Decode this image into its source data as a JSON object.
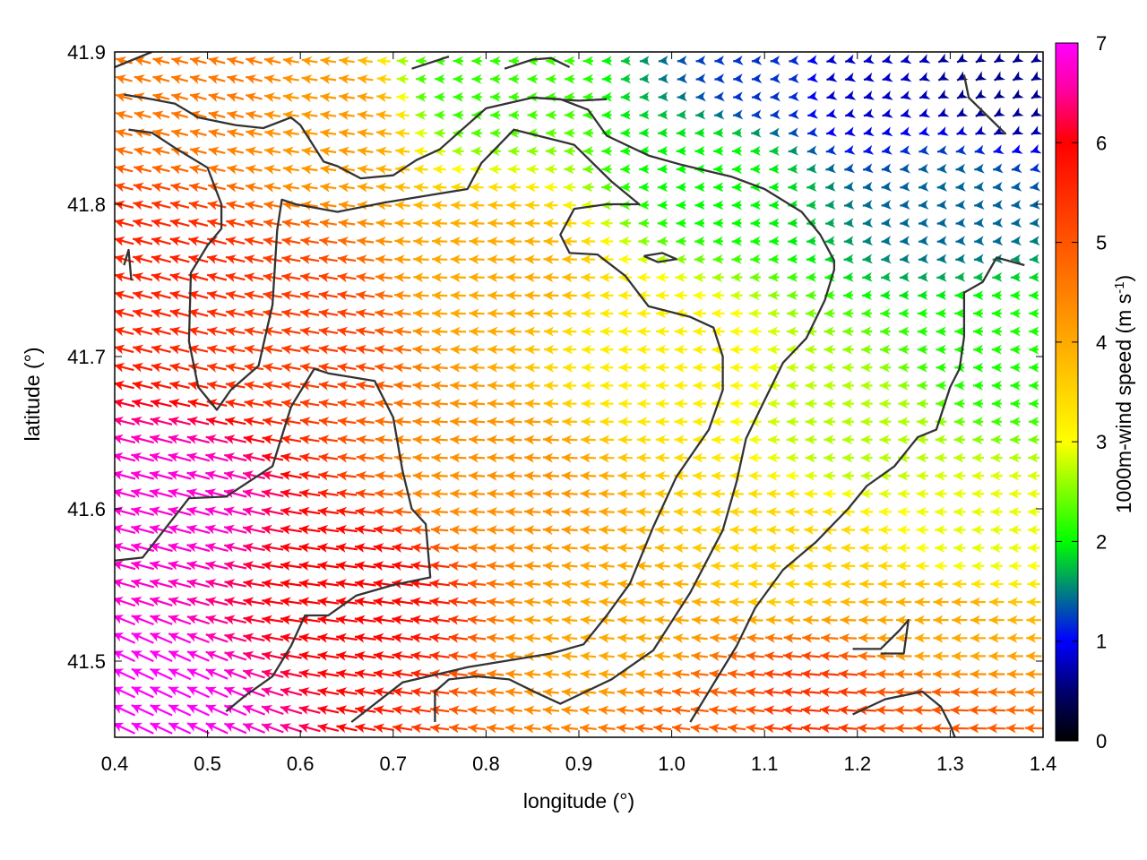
{
  "chart_data": {
    "type": "quiver",
    "title": "",
    "xlabel": "longitude (°)",
    "ylabel": "latitude (°)",
    "xlim": [
      0.4,
      1.4
    ],
    "ylim": [
      41.45,
      41.9
    ],
    "x_ticks": [
      "0.4",
      "0.5",
      "0.6",
      "0.7",
      "0.8",
      "0.9",
      "1.0",
      "1.1",
      "1.2",
      "1.3",
      "1.4"
    ],
    "x_tick_values": [
      0.4,
      0.5,
      0.6,
      0.7,
      0.8,
      0.9,
      1.0,
      1.1,
      1.2,
      1.3,
      1.4
    ],
    "y_ticks": [
      "41.5",
      "41.6",
      "41.7",
      "41.8",
      "41.9"
    ],
    "y_tick_values": [
      41.5,
      41.6,
      41.7,
      41.8,
      41.9
    ],
    "colorbar": {
      "label": "1000m-wind speed (m s-1)",
      "label_main": "1000m-wind speed (m s",
      "label_sup": "-1",
      "label_end": ")",
      "range": [
        0,
        7
      ],
      "ticks": [
        "0",
        "1",
        "2",
        "3",
        "4",
        "5",
        "6",
        "7"
      ],
      "tick_values": [
        0,
        1,
        2,
        3,
        4,
        5,
        6,
        7
      ],
      "colormap": [
        {
          "value": 0.0,
          "color": "#000000"
        },
        {
          "value": 0.5,
          "color": "#00006e"
        },
        {
          "value": 1.0,
          "color": "#0000ff"
        },
        {
          "value": 1.5,
          "color": "#008080"
        },
        {
          "value": 2.0,
          "color": "#00ff00"
        },
        {
          "value": 2.5,
          "color": "#80ff00"
        },
        {
          "value": 3.0,
          "color": "#ffff00"
        },
        {
          "value": 4.0,
          "color": "#ffaa00"
        },
        {
          "value": 5.0,
          "color": "#ff5500"
        },
        {
          "value": 6.0,
          "color": "#ff0000"
        },
        {
          "value": 6.5,
          "color": "#ff0099"
        },
        {
          "value": 7.0,
          "color": "#ff00ff"
        }
      ]
    },
    "wind_field_anchors": [
      {
        "lon": 0.42,
        "lat": 41.47,
        "speed": 7.0,
        "dir_deg": 155
      },
      {
        "lon": 0.45,
        "lat": 41.6,
        "speed": 6.8,
        "dir_deg": 165
      },
      {
        "lon": 0.45,
        "lat": 41.75,
        "speed": 5.6,
        "dir_deg": 165
      },
      {
        "lon": 0.5,
        "lat": 41.88,
        "speed": 4.6,
        "dir_deg": 165
      },
      {
        "lon": 0.65,
        "lat": 41.55,
        "speed": 6.0,
        "dir_deg": 172
      },
      {
        "lon": 0.6,
        "lat": 41.72,
        "speed": 5.3,
        "dir_deg": 170
      },
      {
        "lon": 0.63,
        "lat": 41.86,
        "speed": 4.2,
        "dir_deg": 172
      },
      {
        "lon": 0.8,
        "lat": 41.62,
        "speed": 4.3,
        "dir_deg": 177
      },
      {
        "lon": 0.8,
        "lat": 41.75,
        "speed": 4.0,
        "dir_deg": 178
      },
      {
        "lon": 0.78,
        "lat": 41.88,
        "speed": 2.2,
        "dir_deg": 180
      },
      {
        "lon": 0.95,
        "lat": 41.52,
        "speed": 4.0,
        "dir_deg": 175
      },
      {
        "lon": 0.97,
        "lat": 41.7,
        "speed": 3.2,
        "dir_deg": 180
      },
      {
        "lon": 1.05,
        "lat": 41.82,
        "speed": 2.0,
        "dir_deg": 182
      },
      {
        "lon": 1.1,
        "lat": 41.88,
        "speed": 1.2,
        "dir_deg": 185
      },
      {
        "lon": 1.2,
        "lat": 41.88,
        "speed": 0.8,
        "dir_deg": 195
      },
      {
        "lon": 1.35,
        "lat": 41.88,
        "speed": 0.6,
        "dir_deg": 210
      },
      {
        "lon": 1.3,
        "lat": 41.8,
        "speed": 1.4,
        "dir_deg": 185
      },
      {
        "lon": 1.35,
        "lat": 41.7,
        "speed": 2.1,
        "dir_deg": 180
      },
      {
        "lon": 1.2,
        "lat": 41.65,
        "speed": 2.7,
        "dir_deg": 180
      },
      {
        "lon": 1.33,
        "lat": 41.58,
        "speed": 2.9,
        "dir_deg": 180
      },
      {
        "lon": 1.12,
        "lat": 41.57,
        "speed": 3.5,
        "dir_deg": 178
      },
      {
        "lon": 1.3,
        "lat": 41.52,
        "speed": 4.0,
        "dir_deg": 180
      },
      {
        "lon": 1.15,
        "lat": 41.47,
        "speed": 5.4,
        "dir_deg": 175
      },
      {
        "lon": 1.28,
        "lat": 41.46,
        "speed": 5.0,
        "dir_deg": 178
      },
      {
        "lon": 1.05,
        "lat": 41.46,
        "speed": 4.9,
        "dir_deg": 173
      }
    ],
    "wind_grid": {
      "cols": 50,
      "rows": 38
    },
    "contour_lines": [
      [
        [
          0.41,
          41.872
        ],
        [
          0.44,
          41.869
        ],
        [
          0.465,
          41.866
        ],
        [
          0.49,
          41.857
        ],
        [
          0.53,
          41.852
        ],
        [
          0.56,
          41.85
        ],
        [
          0.59,
          41.857
        ],
        [
          0.6,
          41.852
        ],
        [
          0.625,
          41.828
        ],
        [
          0.64,
          41.825
        ],
        [
          0.665,
          41.817
        ],
        [
          0.7,
          41.819
        ],
        [
          0.725,
          41.829
        ],
        [
          0.75,
          41.836
        ],
        [
          0.8,
          41.863
        ],
        [
          0.85,
          41.87
        ],
        [
          0.9,
          41.868
        ],
        [
          0.93,
          41.869
        ]
      ],
      [
        [
          0.415,
          41.849
        ],
        [
          0.44,
          41.847
        ],
        [
          0.465,
          41.837
        ],
        [
          0.5,
          41.824
        ],
        [
          0.515,
          41.8
        ],
        [
          0.515,
          41.784
        ],
        [
          0.5,
          41.773
        ],
        [
          0.482,
          41.755
        ],
        [
          0.48,
          41.71
        ],
        [
          0.49,
          41.68
        ],
        [
          0.51,
          41.665
        ],
        [
          0.525,
          41.678
        ],
        [
          0.555,
          41.694
        ],
        [
          0.57,
          41.734
        ],
        [
          0.575,
          41.783
        ],
        [
          0.58,
          41.803
        ],
        [
          0.595,
          41.8
        ],
        [
          0.64,
          41.795
        ],
        [
          0.69,
          41.801
        ],
        [
          0.74,
          41.806
        ],
        [
          0.78,
          41.81
        ],
        [
          0.795,
          41.827
        ],
        [
          0.83,
          41.849
        ],
        [
          0.895,
          41.839
        ],
        [
          0.935,
          41.815
        ],
        [
          0.965,
          41.8
        ],
        [
          0.93,
          41.8
        ],
        [
          0.895,
          41.797
        ],
        [
          0.88,
          41.78
        ],
        [
          0.89,
          41.768
        ],
        [
          0.92,
          41.767
        ],
        [
          0.95,
          41.753
        ],
        [
          0.975,
          41.733
        ],
        [
          1.02,
          41.726
        ],
        [
          1.045,
          41.719
        ],
        [
          1.055,
          41.7
        ],
        [
          1.055,
          41.678
        ],
        [
          1.04,
          41.652
        ],
        [
          1.005,
          41.621
        ],
        [
          0.98,
          41.588
        ],
        [
          0.955,
          41.551
        ],
        [
          0.93,
          41.53
        ],
        [
          0.905,
          41.511
        ],
        [
          0.87,
          41.505
        ],
        [
          0.78,
          41.496
        ],
        [
          0.71,
          41.486
        ],
        [
          0.655,
          41.46
        ]
      ],
      [
        [
          0.52,
          41.467
        ],
        [
          0.54,
          41.477
        ],
        [
          0.57,
          41.49
        ],
        [
          0.58,
          41.5
        ],
        [
          0.59,
          41.51
        ],
        [
          0.605,
          41.53
        ],
        [
          0.63,
          41.53
        ],
        [
          0.66,
          41.543
        ],
        [
          0.7,
          41.55
        ],
        [
          0.74,
          41.555
        ],
        [
          0.735,
          41.59
        ],
        [
          0.72,
          41.6
        ],
        [
          0.71,
          41.625
        ],
        [
          0.7,
          41.66
        ],
        [
          0.68,
          41.684
        ],
        [
          0.63,
          41.689
        ],
        [
          0.615,
          41.692
        ],
        [
          0.59,
          41.667
        ],
        [
          0.57,
          41.628
        ],
        [
          0.52,
          41.608
        ],
        [
          0.48,
          41.607
        ],
        [
          0.43,
          41.568
        ],
        [
          0.4,
          41.566
        ]
      ],
      [
        [
          0.745,
          41.46
        ],
        [
          0.745,
          41.48
        ],
        [
          0.76,
          41.488
        ],
        [
          0.79,
          41.49
        ],
        [
          0.825,
          41.488
        ],
        [
          0.855,
          41.479
        ],
        [
          0.88,
          41.472
        ],
        [
          0.935,
          41.488
        ],
        [
          0.98,
          41.507
        ],
        [
          1.02,
          41.545
        ],
        [
          1.055,
          41.586
        ],
        [
          1.07,
          41.618
        ],
        [
          1.08,
          41.646
        ],
        [
          1.095,
          41.665
        ],
        [
          1.12,
          41.696
        ],
        [
          1.145,
          41.712
        ],
        [
          1.165,
          41.737
        ],
        [
          1.175,
          41.757
        ],
        [
          1.175,
          41.763
        ],
        [
          1.16,
          41.78
        ],
        [
          1.14,
          41.795
        ],
        [
          1.1,
          41.81
        ],
        [
          1.065,
          41.818
        ],
        [
          1.01,
          41.826
        ],
        [
          0.975,
          41.832
        ],
        [
          0.93,
          41.845
        ],
        [
          0.91,
          41.862
        ],
        [
          0.88,
          41.869
        ],
        [
          0.85,
          41.87
        ]
      ],
      [
        [
          1.02,
          41.46
        ],
        [
          1.04,
          41.48
        ],
        [
          1.07,
          41.51
        ],
        [
          1.09,
          41.535
        ],
        [
          1.12,
          41.56
        ],
        [
          1.155,
          41.578
        ],
        [
          1.19,
          41.6
        ],
        [
          1.21,
          41.615
        ],
        [
          1.24,
          41.628
        ],
        [
          1.265,
          41.647
        ],
        [
          1.285,
          41.652
        ],
        [
          1.3,
          41.68
        ],
        [
          1.31,
          41.692
        ],
        [
          1.315,
          41.713
        ],
        [
          1.315,
          41.742
        ],
        [
          1.335,
          41.749
        ],
        [
          1.35,
          41.765
        ],
        [
          1.38,
          41.76
        ]
      ],
      [
        [
          1.36,
          41.846
        ],
        [
          1.33,
          41.864
        ],
        [
          1.32,
          41.87
        ],
        [
          1.315,
          41.885
        ]
      ],
      [
        [
          1.195,
          41.508
        ],
        [
          1.225,
          41.508
        ],
        [
          1.245,
          41.52
        ],
        [
          1.255,
          41.527
        ],
        [
          1.25,
          41.505
        ],
        [
          1.225,
          41.505
        ]
      ],
      [
        [
          1.195,
          41.465
        ],
        [
          1.23,
          41.475
        ],
        [
          1.27,
          41.48
        ],
        [
          1.29,
          41.47
        ],
        [
          1.3,
          41.458
        ],
        [
          1.305,
          41.45
        ]
      ],
      [
        [
          0.41,
          41.76
        ],
        [
          0.415,
          41.77
        ],
        [
          0.418,
          41.75
        ]
      ],
      [
        [
          0.97,
          41.766
        ],
        [
          0.99,
          41.768
        ],
        [
          1.005,
          41.764
        ],
        [
          0.985,
          41.762
        ],
        [
          0.97,
          41.766
        ]
      ],
      [
        [
          0.82,
          41.889
        ],
        [
          0.85,
          41.895
        ],
        [
          0.87,
          41.896
        ],
        [
          0.89,
          41.89
        ]
      ],
      [
        [
          0.4,
          41.89
        ],
        [
          0.42,
          41.895
        ],
        [
          0.44,
          41.9
        ]
      ],
      [
        [
          0.72,
          41.889
        ],
        [
          0.76,
          41.897
        ]
      ]
    ]
  }
}
